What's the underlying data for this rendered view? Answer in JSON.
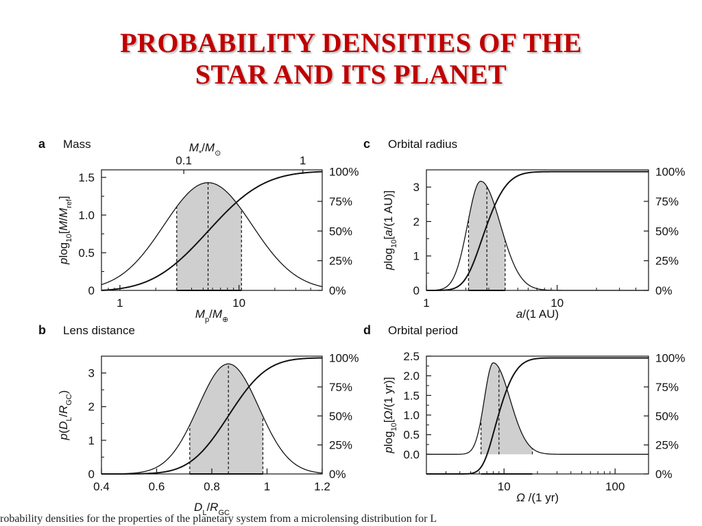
{
  "title": {
    "line1": "PROBABILITY DENSITIES OF THE",
    "line2": "STAR AND ITS PLANET"
  },
  "colors": {
    "title": "#c00000",
    "fill": "#cfcfcf",
    "line": "#111111"
  },
  "caption_fragment": "robability densities for the properties of the planetary system from a microlensing distribution for L",
  "chart_data": [
    {
      "type": "line",
      "letter": "a",
      "name": "Mass",
      "xscale": "log",
      "xlim": [
        0.7,
        50
      ],
      "ylim": [
        0,
        1.6
      ],
      "xticks": [
        1,
        10
      ],
      "xtick_labels": [
        "1",
        "10"
      ],
      "yticks": [
        0,
        0.5,
        1.0,
        1.5
      ],
      "ytick_labels": [
        "0",
        "0.5",
        "1.0",
        "1.5"
      ],
      "xlabel": "M_p/M_⊕",
      "ylabel": "p log10[M/M_ref]",
      "top_axis_label": "M_*/M_⊙",
      "top_ticks": [
        {
          "at": 3.44,
          "label": "0.1"
        },
        {
          "at": 34.4,
          "label": "1"
        }
      ],
      "right_ticks": [
        "0%",
        "25%",
        "50%",
        "75%",
        "100%"
      ],
      "density": {
        "peak_x": 5.5,
        "peak_y": 1.43,
        "width": 0.37
      },
      "shade": [
        3.0,
        10.5
      ],
      "marks": [
        3.0,
        5.5,
        10.5
      ],
      "cumulative": {
        "median_x": 5.5
      }
    },
    {
      "type": "line",
      "letter": "b",
      "name": "Lens distance",
      "xscale": "linear",
      "xlim": [
        0.4,
        1.2
      ],
      "ylim": [
        0,
        3.5
      ],
      "xticks": [
        0.4,
        0.6,
        0.8,
        1.0,
        1.2
      ],
      "xtick_labels": [
        "0.4",
        "0.6",
        "0.8",
        "1",
        "1.2"
      ],
      "yticks": [
        0,
        1,
        2,
        3
      ],
      "ytick_labels": [
        "0",
        "1",
        "2",
        "3"
      ],
      "xlabel": "D_L/R_GC",
      "ylabel": "p(D_L/R_GC)",
      "right_ticks": [
        "0%",
        "25%",
        "50%",
        "75%",
        "100%"
      ],
      "density": {
        "peak_x": 0.86,
        "peak_y": 3.27,
        "width": 0.11
      },
      "shade": [
        0.72,
        0.985
      ],
      "marks": [
        0.72,
        0.86,
        0.985
      ],
      "cumulative": {
        "median_x": 0.86
      }
    },
    {
      "type": "line",
      "letter": "c",
      "name": "Orbital radius",
      "xscale": "log",
      "xlim": [
        1,
        50
      ],
      "ylim": [
        0,
        3.5
      ],
      "xticks": [
        1,
        10
      ],
      "xtick_labels": [
        "1",
        "10"
      ],
      "yticks": [
        0,
        1,
        2,
        3
      ],
      "ytick_labels": [
        "0",
        "1",
        "2",
        "3"
      ],
      "xlabel": "a/(1 AU)",
      "ylabel": "p log10[a/(1 AU)]",
      "right_ticks": [
        "0%",
        "25%",
        "50%",
        "75%",
        "100%"
      ],
      "density": {
        "peak_x": 2.6,
        "peak_y": 3.17,
        "width_left": 0.1,
        "width_right": 0.15
      },
      "shade": [
        2.1,
        4.0
      ],
      "marks": [
        2.1,
        2.9,
        4.0
      ],
      "cumulative": {
        "median_x": 2.9
      }
    },
    {
      "type": "line",
      "letter": "d",
      "name": "Orbital period",
      "xscale": "log",
      "xlim": [
        2,
        200
      ],
      "ylim": [
        -0.5,
        2.5
      ],
      "xticks": [
        10,
        100
      ],
      "xtick_labels": [
        "10",
        "100"
      ],
      "yticks": [
        0,
        0.5,
        1.0,
        1.5,
        2.0,
        2.5
      ],
      "ytick_labels": [
        "0.0",
        "0.5",
        "1.0",
        "1.5",
        "2.0",
        "2.5"
      ],
      "xlabel": "Ω/(1 yr)",
      "ylabel": "p log10[Ω/(1 yr)]",
      "right_ticks": [
        "0%",
        "25%",
        "50%",
        "75%",
        "100%"
      ],
      "density": {
        "peak_x": 8.0,
        "peak_y": 2.33,
        "width_left": 0.08,
        "width_right": 0.15
      },
      "shade": [
        6.2,
        18.0
      ],
      "marks": [
        6.2,
        9.0,
        18.0
      ],
      "cumulative": {
        "median_x": 9.0
      }
    }
  ]
}
